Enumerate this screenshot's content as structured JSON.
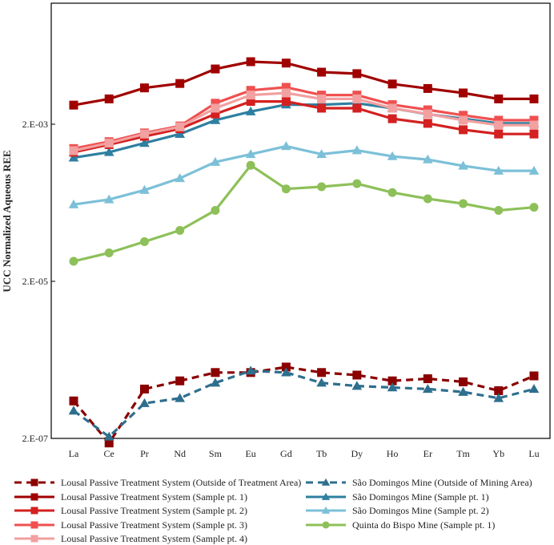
{
  "chart_data": {
    "type": "line",
    "title": "",
    "xlabel": "",
    "ylabel": "UCC Normalized Aqueous REE",
    "yscale": "log",
    "ylim": [
      2e-07,
      0.0632
    ],
    "yticks": [
      {
        "value": 2e-07,
        "label": "2.E-07"
      },
      {
        "value": 2e-05,
        "label": "2.E-05"
      },
      {
        "value": 0.002,
        "label": "2.E-03"
      }
    ],
    "grid": false,
    "legend_position": "bottom",
    "categories": [
      "La",
      "Ce",
      "Pr",
      "Nd",
      "Sm",
      "Eu",
      "Gd",
      "Tb",
      "Dy",
      "Ho",
      "Er",
      "Tm",
      "Yb",
      "Lu"
    ],
    "series": [
      {
        "name": "Lousal Passive Treatment System (Outside of Treatment Area)",
        "color": "#8b0000",
        "marker": "square",
        "dash": true,
        "values": [
          6e-07,
          1.75e-07,
          8.5e-07,
          1.08e-06,
          1.38e-06,
          1.38e-06,
          1.62e-06,
          1.38e-06,
          1.28e-06,
          1.08e-06,
          1.15e-06,
          1.05e-06,
          8.1e-07,
          1.25e-06
        ]
      },
      {
        "name": "São Domingos Mine (Outside of Mining Area)",
        "color": "#2e6f8e",
        "marker": "triangle",
        "dash": true,
        "values": [
          4.5e-07,
          2.1e-07,
          5.6e-07,
          6.5e-07,
          1.02e-06,
          1.45e-06,
          1.38e-06,
          1.02e-06,
          9.3e-07,
          8.9e-07,
          8.5e-07,
          7.8e-07,
          6.5e-07,
          8.5e-07
        ]
      },
      {
        "name": "Lousal Passive Treatment System (Sample pt. 1)",
        "color": "#a00000",
        "marker": "square",
        "dash": false,
        "values": [
          0.0035,
          0.0042,
          0.0058,
          0.0066,
          0.0101,
          0.0125,
          0.012,
          0.0092,
          0.0088,
          0.0065,
          0.0057,
          0.005,
          0.0042,
          0.0042
        ]
      },
      {
        "name": "São Domingos Mine (Sample pt. 1)",
        "color": "#2e7fa0",
        "marker": "triangle",
        "dash": false,
        "values": [
          0.00075,
          0.00088,
          0.00115,
          0.0015,
          0.00225,
          0.0029,
          0.00355,
          0.00355,
          0.0037,
          0.0032,
          0.00268,
          0.00235,
          0.00205,
          0.00205
        ]
      },
      {
        "name": "Lousal Passive Treatment System (Sample pt. 2)",
        "color": "#d42020",
        "marker": "square",
        "dash": false,
        "values": [
          0.00088,
          0.0011,
          0.0014,
          0.00175,
          0.0027,
          0.0039,
          0.0039,
          0.0032,
          0.0032,
          0.00235,
          0.00205,
          0.0017,
          0.0015,
          0.0015
        ]
      },
      {
        "name": "São Domingos Mine (Sample pt. 2)",
        "color": "#7cc0d8",
        "marker": "triangle",
        "dash": false,
        "values": [
          0.00019,
          0.00022,
          0.00029,
          0.00041,
          0.00066,
          0.00083,
          0.00105,
          0.00083,
          0.00093,
          0.00078,
          0.00071,
          0.00059,
          0.00051,
          0.00051
        ]
      },
      {
        "name": "Lousal Passive Treatment System (Sample pt. 3)",
        "color": "#f05050",
        "marker": "square",
        "dash": false,
        "values": [
          0.00098,
          0.0012,
          0.00155,
          0.0019,
          0.0037,
          0.0054,
          0.0059,
          0.0047,
          0.0047,
          0.00355,
          0.00305,
          0.0026,
          0.00225,
          0.00225
        ]
      },
      {
        "name": "Quinta do Bispo Mine (Sample pt. 1)",
        "color": "#8dc059",
        "marker": "circle",
        "dash": false,
        "values": [
          3.6e-05,
          4.6e-05,
          6.4e-05,
          8.9e-05,
          0.00016,
          0.0006,
          0.0003,
          0.00032,
          0.00035,
          0.00027,
          0.000225,
          0.000195,
          0.00016,
          0.000175
        ]
      },
      {
        "name": "Lousal Passive Treatment System (Sample pt. 4)",
        "color": "#f2a0a0",
        "marker": "square",
        "dash": false,
        "values": [
          0.00092,
          0.00115,
          0.0015,
          0.00185,
          0.0032,
          0.0047,
          0.005,
          0.0042,
          0.0042,
          0.0032,
          0.0027,
          0.00225,
          0.00195,
          0.00195
        ]
      }
    ]
  }
}
